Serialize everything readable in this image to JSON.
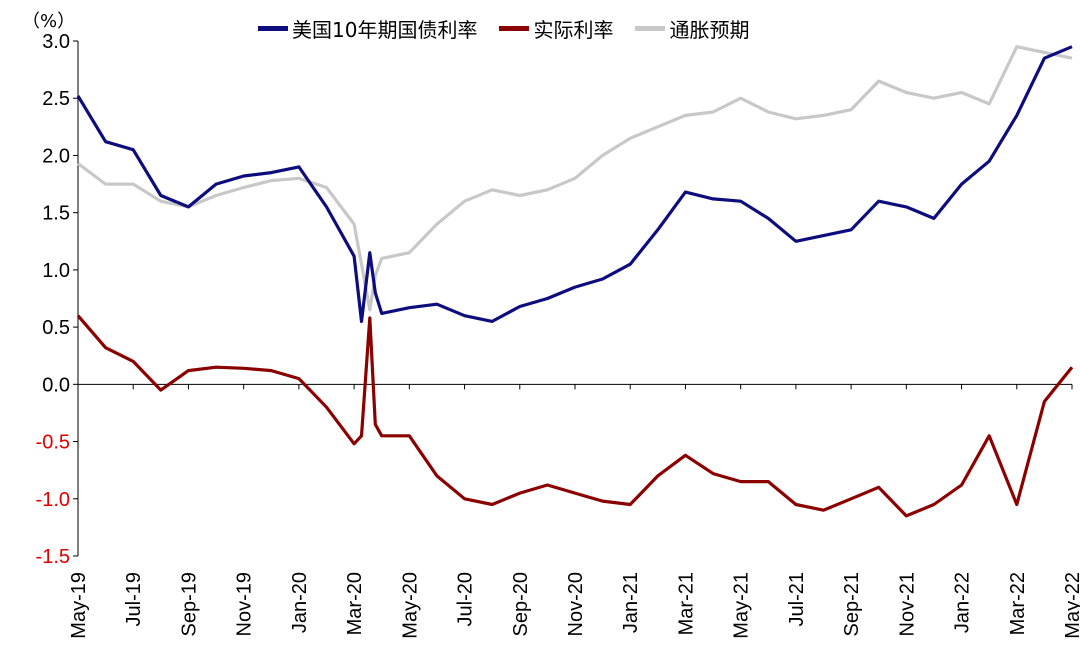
{
  "chart_data": {
    "type": "line",
    "unit_label": "（%）",
    "ylim": [
      -1.5,
      3.0
    ],
    "yticks": [
      {
        "value": 3.0,
        "label": "3.0",
        "color": "#000000"
      },
      {
        "value": 2.5,
        "label": "2.5",
        "color": "#000000"
      },
      {
        "value": 2.0,
        "label": "2.0",
        "color": "#000000"
      },
      {
        "value": 1.5,
        "label": "1.5",
        "color": "#000000"
      },
      {
        "value": 1.0,
        "label": "1.0",
        "color": "#000000"
      },
      {
        "value": 0.5,
        "label": "0.5",
        "color": "#000000"
      },
      {
        "value": 0.0,
        "label": "0.0",
        "color": "#000000"
      },
      {
        "value": -0.5,
        "label": "-0.5",
        "color": "#e00000"
      },
      {
        "value": -1.0,
        "label": "-1.0",
        "color": "#e00000"
      },
      {
        "value": -1.5,
        "label": "-1.5",
        "color": "#e00000"
      }
    ],
    "xticks": [
      "May-19",
      "Jul-19",
      "Sep-19",
      "Nov-19",
      "Jan-20",
      "Mar-20",
      "May-20",
      "Jul-20",
      "Sep-20",
      "Nov-20",
      "Jan-21",
      "Mar-21",
      "May-21",
      "Jul-21",
      "Sep-21",
      "Nov-21",
      "Jan-22",
      "Mar-22",
      "May-22"
    ],
    "x_dates": [
      "2019-05",
      "2019-06",
      "2019-07",
      "2019-08",
      "2019-09",
      "2019-10",
      "2019-11",
      "2019-12",
      "2020-01",
      "2020-02",
      "2020-03-01",
      "2020-03-09",
      "2020-03-18",
      "2020-03-24",
      "2020-04",
      "2020-05",
      "2020-06",
      "2020-07",
      "2020-08",
      "2020-09",
      "2020-10",
      "2020-11",
      "2020-12",
      "2021-01",
      "2021-02",
      "2021-03",
      "2021-04",
      "2021-05",
      "2021-06",
      "2021-07",
      "2021-08",
      "2021-09",
      "2021-10",
      "2021-11",
      "2021-12",
      "2022-01",
      "2022-02",
      "2022-03",
      "2022-04",
      "2022-05"
    ],
    "series": [
      {
        "name": "美国10年期国债利率",
        "color": "#0d0d7d",
        "values": [
          2.52,
          2.12,
          2.05,
          1.65,
          1.55,
          1.75,
          1.82,
          1.85,
          1.9,
          1.55,
          1.12,
          0.55,
          1.15,
          0.8,
          0.62,
          0.67,
          0.7,
          0.6,
          0.55,
          0.68,
          0.75,
          0.85,
          0.92,
          1.05,
          1.35,
          1.68,
          1.62,
          1.6,
          1.45,
          1.25,
          1.3,
          1.35,
          1.6,
          1.55,
          1.45,
          1.75,
          1.95,
          2.35,
          2.85,
          2.95
        ]
      },
      {
        "name": "实际利率",
        "color": "#8b0000",
        "values": [
          0.6,
          0.32,
          0.2,
          -0.05,
          0.12,
          0.15,
          0.14,
          0.12,
          0.05,
          -0.2,
          -0.52,
          -0.45,
          0.58,
          -0.35,
          -0.45,
          -0.45,
          -0.8,
          -1.0,
          -1.05,
          -0.95,
          -0.88,
          -0.95,
          -1.02,
          -1.05,
          -0.8,
          -0.62,
          -0.78,
          -0.85,
          -0.85,
          -1.05,
          -1.1,
          -1.0,
          -0.9,
          -1.15,
          -1.05,
          -0.88,
          -0.45,
          -1.05,
          -0.15,
          0.15
        ]
      },
      {
        "name": "通胀预期",
        "color": "#c8c8c8",
        "values": [
          1.93,
          1.75,
          1.75,
          1.6,
          1.55,
          1.65,
          1.72,
          1.78,
          1.8,
          1.72,
          1.4,
          1.05,
          0.65,
          0.95,
          1.1,
          1.15,
          1.4,
          1.6,
          1.7,
          1.65,
          1.7,
          1.8,
          2.0,
          2.15,
          2.25,
          2.35,
          2.38,
          2.5,
          2.38,
          2.32,
          2.35,
          2.4,
          2.65,
          2.55,
          2.5,
          2.55,
          2.45,
          2.95,
          2.9,
          2.85
        ]
      }
    ]
  }
}
